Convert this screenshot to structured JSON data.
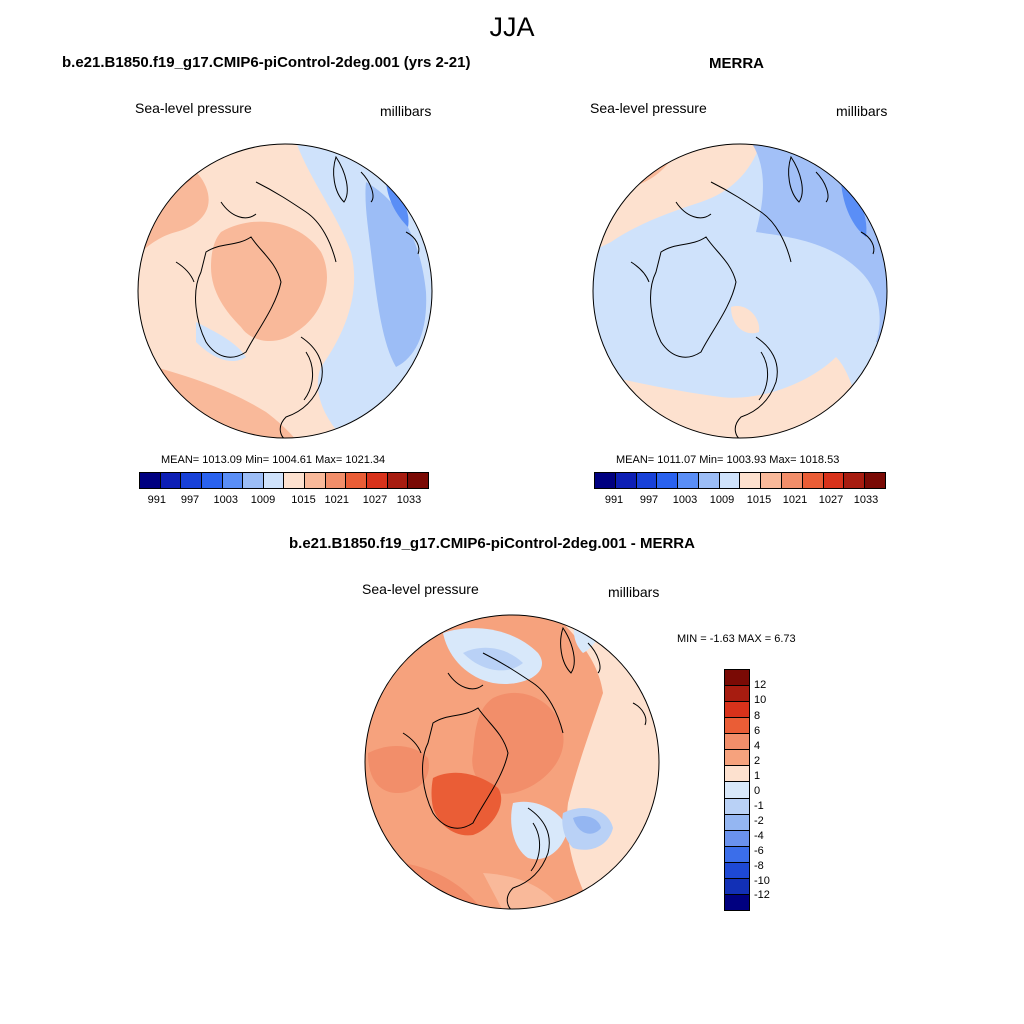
{
  "main_title": "JJA",
  "colors": {
    "abs_scale": [
      "#000080",
      "#0d1fb5",
      "#1841d8",
      "#2a62ef",
      "#5a8ef6",
      "#9cbdf6",
      "#cfe2fb",
      "#fde1cf",
      "#f9b99a",
      "#f28e6a",
      "#ea5d36",
      "#d8321b",
      "#a71c10",
      "#7a0a05"
    ],
    "diff_scale": [
      "#7a0a05",
      "#a71c10",
      "#d8321b",
      "#ea5d36",
      "#f28e6a",
      "#f6a27d",
      "#fde1cf",
      "#d8e8fa",
      "#b9d1f6",
      "#94b6f2",
      "#6a92ee",
      "#3b6eea",
      "#1e49d5",
      "#1230b6",
      "#000080"
    ]
  },
  "panels": {
    "model": {
      "title": "b.e21.B1850.f19_g17.CMIP6-piControl-2deg.001 (yrs 2-21)",
      "variable": "Sea-level pressure",
      "units": "millibars",
      "stats": "MEAN= 1013.09  Min= 1004.61  Max= 1021.34",
      "colorbar_labels": [
        "991",
        "997",
        "1003",
        "1009",
        "1015",
        "1021",
        "1027",
        "1033"
      ]
    },
    "obs": {
      "title": "MERRA",
      "variable": "Sea-level pressure",
      "units": "millibars",
      "stats": "MEAN= 1011.07  Min= 1003.93  Max= 1018.53",
      "colorbar_labels": [
        "991",
        "997",
        "1003",
        "1009",
        "1015",
        "1021",
        "1027",
        "1033"
      ]
    },
    "diff": {
      "title": "b.e21.B1850.f19_g17.CMIP6-piControl-2deg.001 - MERRA",
      "variable": "Sea-level pressure",
      "units": "millibars",
      "stats": "MIN =  -1.63 MAX =   6.73",
      "colorbar_labels": [
        "12",
        "10",
        "8",
        "6",
        "4",
        "2",
        "1",
        "0",
        "-1",
        "-2",
        "-4",
        "-6",
        "-8",
        "-10",
        "-12"
      ]
    }
  }
}
